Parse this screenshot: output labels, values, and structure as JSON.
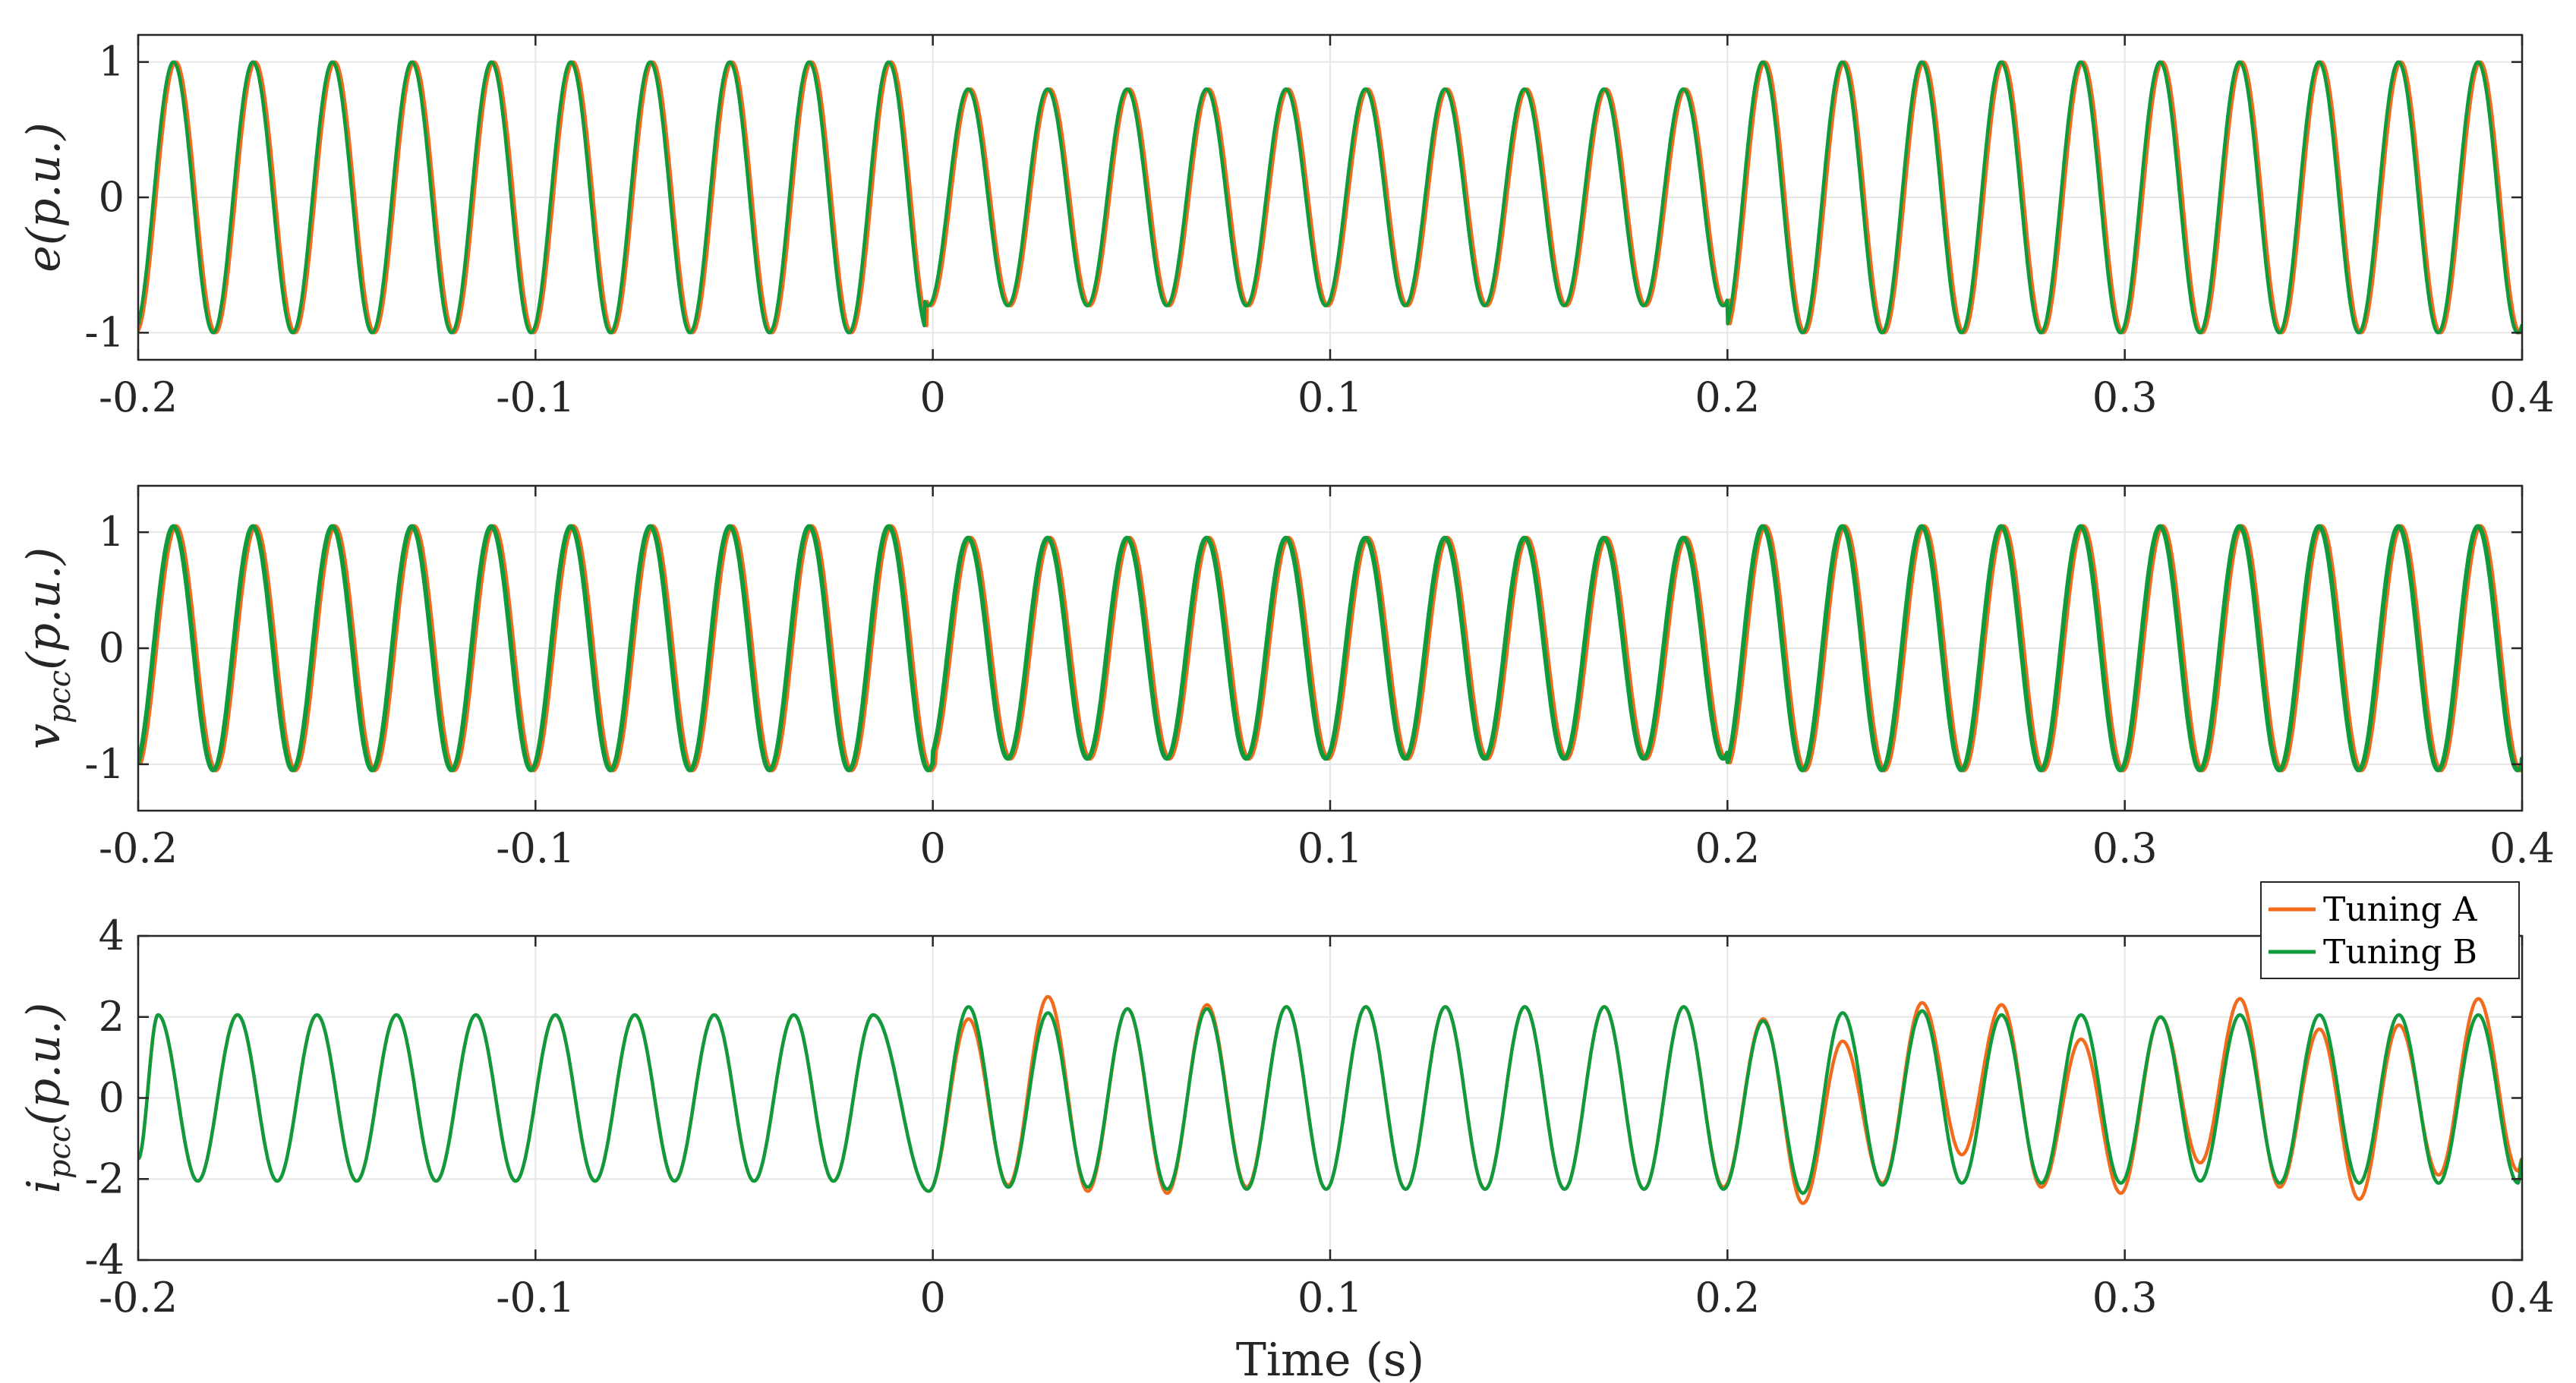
{
  "chart_data": [
    {
      "type": "line",
      "ylabel_main": "e",
      "ylabel_sub": "",
      "ylabel_unit": "(p.u.)",
      "xlim": [
        -0.2,
        0.4
      ],
      "ylim": [
        -1.2,
        1.2
      ],
      "xticks": [
        -0.2,
        -0.1,
        0,
        0.1,
        0.2,
        0.3,
        0.4
      ],
      "xtick_labels": [
        "-0.2",
        "-0.1",
        "0",
        "0.1",
        "0.2",
        "0.3",
        "0.4"
      ],
      "yticks": [
        -1,
        0,
        1
      ],
      "ytick_labels": [
        "-1",
        "0",
        "1"
      ],
      "grid": true,
      "frequency_hz": 50,
      "segments": [
        {
          "x_start": -0.2,
          "x_end": -0.002,
          "amplitude": 1.0
        },
        {
          "x_start": -0.002,
          "x_end": 0.2,
          "amplitude": 0.8
        },
        {
          "x_start": 0.2,
          "x_end": 0.4,
          "amplitude": 1.0
        }
      ],
      "series": [
        {
          "color": "#f26b1d",
          "sample_x": [
            -0.195,
            -0.185,
            -0.175,
            0.005,
            0.015,
            0.205,
            0.215,
            0.395
          ],
          "sample_y": [
            1.0,
            -1.0,
            1.0,
            0.8,
            -0.8,
            1.0,
            -1.0,
            1.0
          ]
        },
        {
          "color": "#0f9b3c",
          "sample_x": [
            -0.195,
            -0.185,
            -0.175,
            0.005,
            0.015,
            0.205,
            0.215,
            0.395
          ],
          "sample_y": [
            1.0,
            -1.0,
            1.0,
            0.8,
            -0.8,
            1.0,
            -1.0,
            1.0
          ]
        }
      ]
    },
    {
      "type": "line",
      "ylabel_main": "v",
      "ylabel_sub": "pcc",
      "ylabel_unit": "(p.u.)",
      "xlim": [
        -0.2,
        0.4
      ],
      "ylim": [
        -1.4,
        1.4
      ],
      "xticks": [
        -0.2,
        -0.1,
        0,
        0.1,
        0.2,
        0.3,
        0.4
      ],
      "xtick_labels": [
        "-0.2",
        "-0.1",
        "0",
        "0.1",
        "0.2",
        "0.3",
        "0.4"
      ],
      "yticks": [
        -1,
        0,
        1
      ],
      "ytick_labels": [
        "-1",
        "0",
        "1"
      ],
      "grid": true,
      "frequency_hz": 50,
      "segments": [
        {
          "x_start": -0.2,
          "x_end": 0.0,
          "amplitude": 1.05
        },
        {
          "x_start": 0.0,
          "x_end": 0.2,
          "amplitude": 0.95
        },
        {
          "x_start": 0.2,
          "x_end": 0.4,
          "amplitude": 1.05
        }
      ],
      "series": [
        {
          "color": "#f26b1d",
          "sample_x": [
            -0.195,
            -0.185,
            0.005,
            0.015,
            0.205,
            0.215
          ],
          "sample_y": [
            1.05,
            -1.05,
            0.95,
            -0.95,
            1.05,
            -1.05
          ]
        },
        {
          "color": "#0f9b3c",
          "sample_x": [
            -0.195,
            -0.185,
            0.005,
            0.015,
            0.205,
            0.215
          ],
          "sample_y": [
            1.05,
            -1.05,
            0.95,
            -0.95,
            1.05,
            -1.05
          ]
        }
      ]
    },
    {
      "type": "line",
      "ylabel_main": "i",
      "ylabel_sub": "pcc",
      "ylabel_unit": "(p.u.)",
      "xlabel": "Time (s)",
      "xlim": [
        -0.2,
        0.4
      ],
      "ylim": [
        -4,
        4
      ],
      "xticks": [
        -0.2,
        -0.1,
        0,
        0.1,
        0.2,
        0.3,
        0.4
      ],
      "xtick_labels": [
        "-0.2",
        "-0.1",
        "0",
        "0.1",
        "0.2",
        "0.3",
        "0.4"
      ],
      "yticks": [
        -4,
        -2,
        0,
        2,
        4
      ],
      "ytick_labels": [
        "-4",
        "-2",
        "0",
        "2",
        "4"
      ],
      "grid": true,
      "frequency_hz": 50,
      "legend": {
        "position": "top-right"
      },
      "series": [
        {
          "name": "Tuning A",
          "color": "#f26b1d",
          "peaks_x": [
            -0.195,
            -0.175,
            -0.155,
            -0.135,
            -0.115,
            -0.095,
            -0.075,
            -0.055,
            -0.035,
            -0.015,
            0.009,
            0.029,
            0.049,
            0.069,
            0.089,
            0.109,
            0.129,
            0.149,
            0.169,
            0.189,
            0.209,
            0.229,
            0.249,
            0.269,
            0.289,
            0.309,
            0.329,
            0.349,
            0.369,
            0.389
          ],
          "peaks_y": [
            2.05,
            2.05,
            2.05,
            2.05,
            2.05,
            2.05,
            2.05,
            2.05,
            2.05,
            2.05,
            1.95,
            2.5,
            2.2,
            2.3,
            2.25,
            2.25,
            2.25,
            2.25,
            2.25,
            2.25,
            1.95,
            1.4,
            2.35,
            2.3,
            1.45,
            2.0,
            2.45,
            1.7,
            1.8,
            2.45
          ],
          "troughs_x": [
            -0.185,
            -0.165,
            -0.145,
            -0.125,
            -0.105,
            -0.085,
            -0.065,
            -0.045,
            -0.025,
            -0.001,
            0.019,
            0.039,
            0.059,
            0.079,
            0.099,
            0.119,
            0.139,
            0.159,
            0.179,
            0.199,
            0.219,
            0.239,
            0.259,
            0.279,
            0.299,
            0.319,
            0.339,
            0.359,
            0.379,
            0.399
          ],
          "troughs_y": [
            -2.05,
            -2.05,
            -2.05,
            -2.05,
            -2.05,
            -2.05,
            -2.05,
            -2.05,
            -2.05,
            -2.3,
            -2.15,
            -2.3,
            -2.35,
            -2.2,
            -2.25,
            -2.25,
            -2.25,
            -2.25,
            -2.25,
            -2.2,
            -2.6,
            -2.1,
            -1.4,
            -2.2,
            -2.35,
            -1.6,
            -2.2,
            -2.5,
            -1.9,
            -1.8
          ]
        },
        {
          "name": "Tuning B",
          "color": "#0f9b3c",
          "peaks_x": [
            -0.195,
            -0.175,
            -0.155,
            -0.135,
            -0.115,
            -0.095,
            -0.075,
            -0.055,
            -0.035,
            -0.015,
            0.009,
            0.029,
            0.049,
            0.069,
            0.089,
            0.109,
            0.129,
            0.149,
            0.169,
            0.189,
            0.209,
            0.229,
            0.249,
            0.269,
            0.289,
            0.309,
            0.329,
            0.349,
            0.369,
            0.389
          ],
          "peaks_y": [
            2.05,
            2.05,
            2.05,
            2.05,
            2.05,
            2.05,
            2.05,
            2.05,
            2.05,
            2.05,
            2.25,
            2.1,
            2.2,
            2.2,
            2.25,
            2.25,
            2.25,
            2.25,
            2.25,
            2.25,
            1.9,
            2.1,
            2.15,
            2.05,
            2.05,
            2.0,
            2.05,
            2.05,
            2.05,
            2.05
          ],
          "troughs_x": [
            -0.185,
            -0.165,
            -0.145,
            -0.125,
            -0.105,
            -0.085,
            -0.065,
            -0.045,
            -0.025,
            -0.001,
            0.019,
            0.039,
            0.059,
            0.079,
            0.099,
            0.119,
            0.139,
            0.159,
            0.179,
            0.199,
            0.219,
            0.239,
            0.259,
            0.279,
            0.299,
            0.319,
            0.339,
            0.359,
            0.379,
            0.399
          ],
          "troughs_y": [
            -2.05,
            -2.05,
            -2.05,
            -2.05,
            -2.05,
            -2.05,
            -2.05,
            -2.05,
            -2.05,
            -2.3,
            -2.2,
            -2.2,
            -2.25,
            -2.25,
            -2.25,
            -2.25,
            -2.25,
            -2.25,
            -2.25,
            -2.25,
            -2.35,
            -2.15,
            -2.1,
            -2.1,
            -2.1,
            -2.05,
            -2.1,
            -2.1,
            -2.1,
            -2.1
          ]
        }
      ]
    }
  ]
}
